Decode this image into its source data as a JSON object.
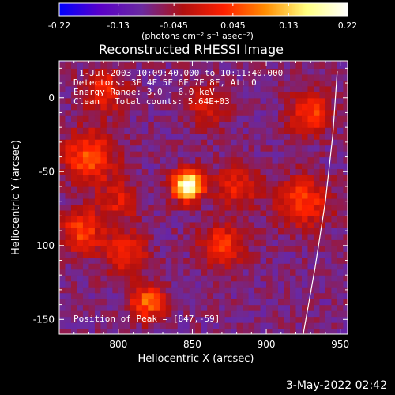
{
  "chart_data": {
    "type": "heatmap",
    "title": "Reconstructed RHESSI Image",
    "xlabel": "Heliocentric X (arcsec)",
    "ylabel": "Heliocentric Y (arcsec)",
    "xlim": [
      760,
      955
    ],
    "ylim": [
      -160,
      25
    ],
    "xticks": [
      800,
      850,
      900,
      950
    ],
    "yticks": [
      0,
      -50,
      -100,
      -150
    ],
    "colorbar": {
      "ticks": [
        "-0.22",
        "-0.13",
        "-0.045",
        "0.045",
        "0.13",
        "0.22"
      ],
      "range": [
        -0.22,
        0.22
      ],
      "unit_label": "(photons cm⁻² s⁻¹ asec⁻²)",
      "colormap": [
        "#0000ff",
        "#5a00c8",
        "#6a2aa0",
        "#b01010",
        "#ff2000",
        "#ff8c00",
        "#ffff80",
        "#ffffff"
      ]
    },
    "annotations": {
      "time_range": "1-Jul-2003 10:09:40.000 to 10:11:40.000",
      "detectors": "Detectors: 3F 4F 5F 6F 7F 8F, Att 0",
      "energy": "Energy Range: 3.0 - 6.0 keV",
      "algorithm": "Clean",
      "total_counts": "Total counts: 5.64E+03",
      "peak": "Position of Peak = [847,-59]"
    },
    "peak": {
      "x": 847,
      "y": -59,
      "value": 0.22
    },
    "sources": [
      {
        "x": 847,
        "y": -59,
        "amp": 1.0,
        "sigma": 7
      },
      {
        "x": 780,
        "y": -40,
        "amp": 0.45,
        "sigma": 12
      },
      {
        "x": 790,
        "y": 5,
        "amp": 0.35,
        "sigma": 10
      },
      {
        "x": 775,
        "y": -90,
        "amp": 0.4,
        "sigma": 10
      },
      {
        "x": 820,
        "y": -138,
        "amp": 0.5,
        "sigma": 8
      },
      {
        "x": 805,
        "y": -105,
        "amp": 0.35,
        "sigma": 10
      },
      {
        "x": 870,
        "y": -100,
        "amp": 0.4,
        "sigma": 10
      },
      {
        "x": 880,
        "y": -60,
        "amp": 0.3,
        "sigma": 10
      },
      {
        "x": 930,
        "y": -10,
        "amp": 0.4,
        "sigma": 10
      },
      {
        "x": 925,
        "y": -70,
        "amp": 0.4,
        "sigma": 12
      },
      {
        "x": 860,
        "y": -5,
        "amp": 0.25,
        "sigma": 10
      },
      {
        "x": 800,
        "y": -70,
        "amp": 0.25,
        "sigma": 10
      }
    ],
    "limb_curve": [
      [
        948,
        18
      ],
      [
        945,
        -25
      ],
      [
        940,
        -70
      ],
      [
        933,
        -115
      ],
      [
        925,
        -160
      ]
    ]
  },
  "footer": {
    "datestamp": "3-May-2022 02:42"
  }
}
